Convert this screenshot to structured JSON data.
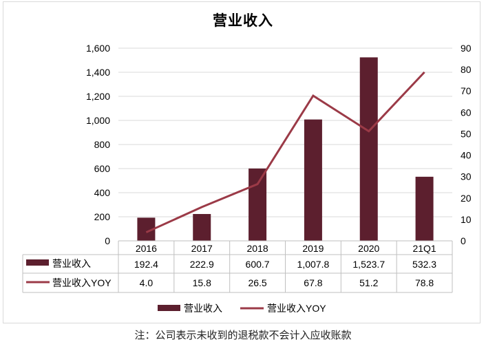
{
  "chart_data": {
    "type": "bar",
    "title": "营业收入",
    "categories": [
      "2016",
      "2017",
      "2018",
      "2019",
      "2020",
      "21Q1"
    ],
    "series": [
      {
        "name": "营业收入",
        "type": "bar",
        "axis": "left",
        "values": [
          192.4,
          222.9,
          600.7,
          1007.8,
          1523.7,
          532.3
        ],
        "labels": [
          "192.4",
          "222.9",
          "600.7",
          "1,007.8",
          "1,523.7",
          "532.3"
        ],
        "color": "#5c1f2e"
      },
      {
        "name": "营业收入YOY",
        "type": "line",
        "axis": "right",
        "values": [
          4.0,
          15.8,
          26.5,
          67.8,
          51.2,
          78.8
        ],
        "labels": [
          "4.0",
          "15.8",
          "26.5",
          "67.8",
          "51.2",
          "78.8"
        ],
        "color": "#9b3a47"
      }
    ],
    "ylim_left": [
      0,
      1600
    ],
    "yticks_left": [
      "0",
      "200",
      "400",
      "600",
      "800",
      "1,000",
      "1,200",
      "1,400",
      "1,600"
    ],
    "ylim_right": [
      0,
      90
    ],
    "yticks_right": [
      "0",
      "10",
      "20",
      "30",
      "40",
      "50",
      "60",
      "70",
      "80",
      "90"
    ],
    "grid": true,
    "legend": "bottom",
    "data_table": true
  },
  "footnote": "注：公司表示未收到的退税款不会计入应收账款"
}
